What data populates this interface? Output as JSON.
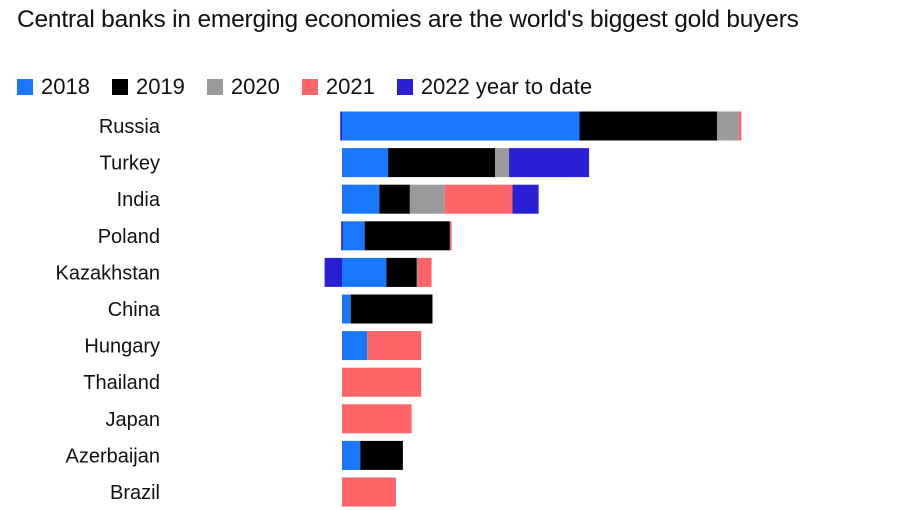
{
  "chart_data": {
    "type": "bar",
    "orientation": "horizontal",
    "stacked": true,
    "title": "Central banks in emerging economies are the world's biggest gold buyers",
    "xlabel": "",
    "ylabel": "",
    "units": "approx. tonnes (estimated, no axis shown)",
    "grid": false,
    "legend_position": "top-left",
    "categories": [
      "Russia",
      "Turkey",
      "India",
      "Poland",
      "Kazakhstan",
      "China",
      "Hungary",
      "Thailand",
      "Japan",
      "Azerbaijan",
      "Brazil"
    ],
    "series": [
      {
        "name": "2018",
        "color": "#1877fb",
        "values": [
          273,
          53,
          43,
          26,
          51,
          10,
          29,
          0,
          0,
          21,
          0
        ]
      },
      {
        "name": "2019",
        "color": "#000000",
        "values": [
          158,
          123,
          35,
          98,
          35,
          94,
          0,
          0,
          0,
          49,
          0
        ]
      },
      {
        "name": "2020",
        "color": "#9a999b",
        "values": [
          25,
          16,
          40,
          0,
          1,
          0,
          0,
          0,
          0,
          0,
          0
        ]
      },
      {
        "name": "2021",
        "color": "#ff6468",
        "values": [
          3,
          0,
          78,
          2,
          16,
          0,
          62,
          91,
          80,
          0,
          62
        ]
      },
      {
        "name": "2022 year to date",
        "color": "#2b1fd6",
        "values": [
          -2,
          92,
          30,
          -1,
          -20,
          0,
          0,
          0,
          0,
          0,
          0
        ]
      }
    ]
  }
}
